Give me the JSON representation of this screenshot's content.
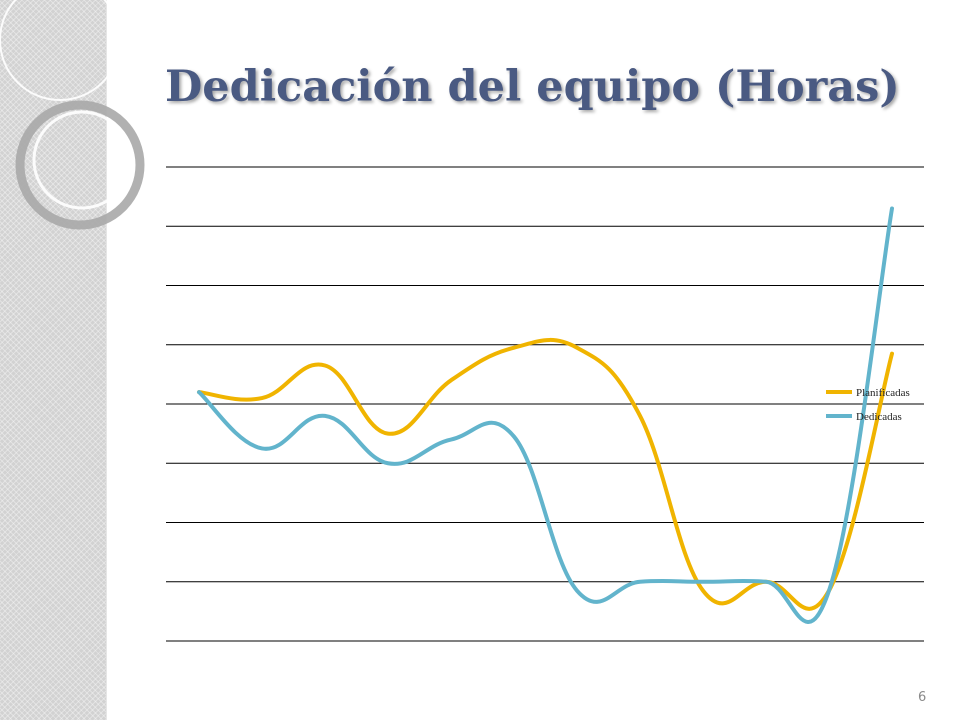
{
  "slide": {
    "title": "Dedicación del equipo (Horas)",
    "page_number": "6"
  },
  "colors": {
    "planificadas": "#f0b400",
    "dedicadas": "#62b4cc",
    "gridline": "#000000",
    "title": "#4a5a82"
  },
  "chart_data": {
    "type": "line",
    "title": "",
    "xlabel": "",
    "ylabel": "",
    "smooth": true,
    "grid": true,
    "legend_position": "right",
    "ylim": [
      0,
      8
    ],
    "gridlines": 9,
    "x": [
      1,
      2,
      3,
      4,
      5,
      6,
      7,
      8,
      9,
      10,
      11,
      12
    ],
    "series": [
      {
        "name": "Planificadas",
        "color": "#f0b400",
        "values": [
          4.2,
          4.1,
          4.65,
          3.5,
          4.4,
          4.95,
          4.95,
          3.8,
          0.85,
          1.0,
          0.85,
          4.85
        ]
      },
      {
        "name": "Dedicadas",
        "color": "#62b4cc",
        "values": [
          4.2,
          3.25,
          3.8,
          3.0,
          3.4,
          3.45,
          0.85,
          1.0,
          1.0,
          1.0,
          0.85,
          7.3
        ]
      }
    ]
  }
}
